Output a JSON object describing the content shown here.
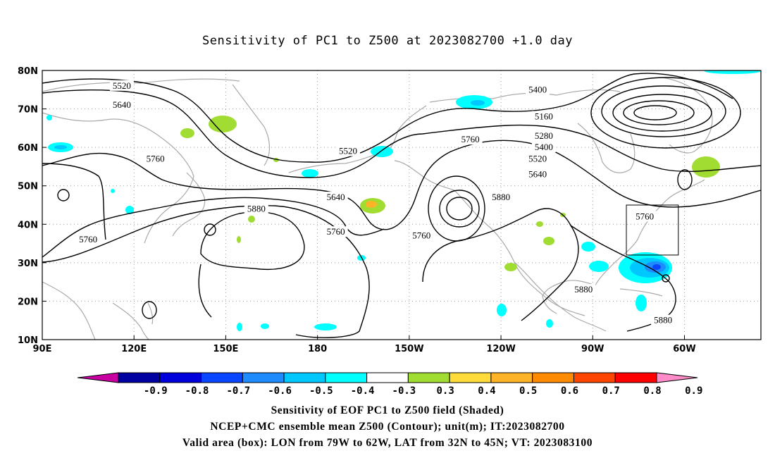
{
  "title": "Sensitivity of PC1 to Z500 at 2023082700 +1.0 day",
  "lat_labels": [
    "80N",
    "70N",
    "60N",
    "50N",
    "40N",
    "30N",
    "20N",
    "10N"
  ],
  "lon_labels": [
    "90E",
    "120E",
    "150E",
    "180",
    "150W",
    "120W",
    "90W",
    "60W"
  ],
  "colorbar": {
    "labels": [
      "-0.9",
      "-0.8",
      "-0.7",
      "-0.6",
      "-0.5",
      "-0.4",
      "-0.3",
      "0.3",
      "0.4",
      "0.5",
      "0.6",
      "0.7",
      "0.8",
      "0.9"
    ],
    "colors": [
      "#c800a0",
      "#0000a0",
      "#0000dc",
      "#0a46ff",
      "#1e8cff",
      "#00c8ff",
      "#00ffff",
      "#ffffff",
      "#a0dc32",
      "#ffdc3c",
      "#ffb428",
      "#ff8c00",
      "#ff4600",
      "#ff0000",
      "#ff8cc8"
    ]
  },
  "contour_labels": [
    {
      "text": "5400",
      "lon": -108,
      "lat": 75
    },
    {
      "text": "5160",
      "lon": -106,
      "lat": 68
    },
    {
      "text": "5280",
      "lon": -106,
      "lat": 63
    },
    {
      "text": "5400",
      "lon": -106,
      "lat": 60
    },
    {
      "text": "5520",
      "lon": -108,
      "lat": 57
    },
    {
      "text": "5640",
      "lon": -108,
      "lat": 53
    },
    {
      "text": "5520",
      "lon": 116,
      "lat": 76
    },
    {
      "text": "5640",
      "lon": 116,
      "lat": 71
    },
    {
      "text": "5760",
      "lon": 127,
      "lat": 57
    },
    {
      "text": "5520",
      "lon": -170,
      "lat": 59
    },
    {
      "text": "5760",
      "lon": -130,
      "lat": 62
    },
    {
      "text": "5640",
      "lon": -174,
      "lat": 47
    },
    {
      "text": "5880",
      "lon": 160,
      "lat": 44
    },
    {
      "text": "5880",
      "lon": -120,
      "lat": 47
    },
    {
      "text": "5760",
      "lon": -73,
      "lat": 42
    },
    {
      "text": "5760",
      "lon": -174,
      "lat": 38
    },
    {
      "text": "5760",
      "lon": -146,
      "lat": 37
    },
    {
      "text": "5760",
      "lon": 105,
      "lat": 36
    },
    {
      "text": "5880",
      "lon": -93,
      "lat": 23
    },
    {
      "text": "5880",
      "lon": -67,
      "lat": 15
    }
  ],
  "valid_box": {
    "lon_west": -79,
    "lon_east": -62,
    "lat_south": 32,
    "lat_north": 45
  },
  "captions": [
    "Sensitivity of EOF PC1 to Z500 field (Shaded)",
    "NCEP+CMC ensemble mean Z500 (Contour); unit(m); IT:2023082700",
    "Valid area (box): LON from 79W to 62W, LAT from 32N to 45N; VT: 2023083100"
  ]
}
